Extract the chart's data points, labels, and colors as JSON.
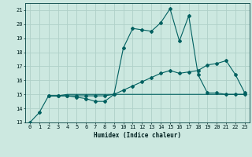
{
  "xlabel": "Humidex (Indice chaleur)",
  "xlim": [
    -0.5,
    23.5
  ],
  "ylim": [
    13,
    21.5
  ],
  "xticks": [
    0,
    1,
    2,
    3,
    4,
    5,
    6,
    7,
    8,
    9,
    10,
    11,
    12,
    13,
    14,
    15,
    16,
    17,
    18,
    19,
    20,
    21,
    22,
    23
  ],
  "yticks": [
    13,
    14,
    15,
    16,
    17,
    18,
    19,
    20,
    21
  ],
  "bg_color": "#cce8e0",
  "grid_color": "#afd0c8",
  "line_color": "#006060",
  "series1_x": [
    0,
    1,
    2,
    3,
    4,
    5,
    6,
    7,
    8,
    9,
    10,
    11,
    12,
    13,
    14,
    15,
    16,
    17,
    18,
    19,
    20,
    21,
    22,
    23
  ],
  "series1_y": [
    13.0,
    13.7,
    14.9,
    14.9,
    14.9,
    14.8,
    14.7,
    14.5,
    14.5,
    15.0,
    18.3,
    19.7,
    19.6,
    19.5,
    20.1,
    21.1,
    18.8,
    20.6,
    16.4,
    15.1,
    15.1,
    15.0,
    15.0,
    15.0
  ],
  "series2_x": [
    2,
    3,
    4,
    5,
    6,
    7,
    8,
    9,
    10,
    11,
    12,
    13,
    14,
    15,
    16,
    17,
    18,
    19,
    20,
    21,
    22,
    23
  ],
  "series2_y": [
    14.9,
    14.9,
    15.0,
    15.0,
    15.0,
    15.0,
    15.0,
    15.0,
    15.0,
    15.0,
    15.0,
    15.0,
    15.0,
    15.0,
    15.0,
    15.0,
    15.0,
    15.0,
    15.0,
    15.0,
    15.0,
    15.0
  ],
  "series3_x": [
    2,
    3,
    4,
    5,
    6,
    7,
    8,
    9,
    10,
    11,
    12,
    13,
    14,
    15,
    16,
    17,
    18,
    19,
    20,
    21,
    22,
    23
  ],
  "series3_y": [
    14.9,
    14.9,
    14.9,
    14.9,
    14.9,
    14.9,
    14.9,
    15.0,
    15.3,
    15.6,
    15.9,
    16.2,
    16.5,
    16.7,
    16.5,
    16.6,
    16.7,
    17.1,
    17.2,
    17.4,
    16.4,
    15.1
  ]
}
